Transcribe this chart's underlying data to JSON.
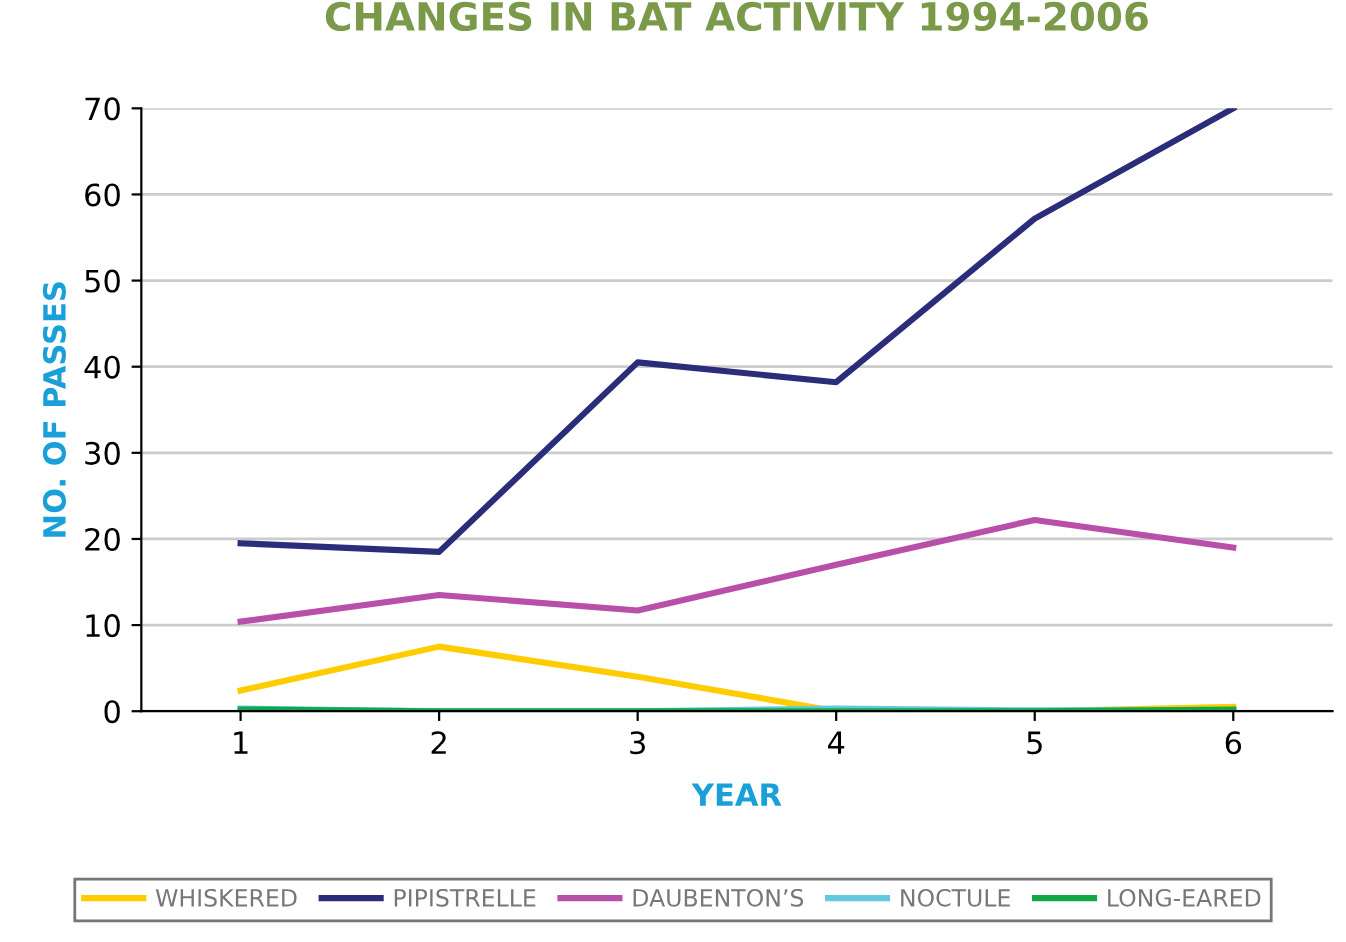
{
  "chart_data": {
    "type": "line",
    "title": "CHANGES IN BAT ACTIVITY 1994-2006",
    "xlabel": "YEAR",
    "ylabel": "NO. OF PASSES",
    "categories": [
      "1",
      "2",
      "3",
      "4",
      "5",
      "6"
    ],
    "series": [
      {
        "name": "WHISKERED",
        "color": "#ffcc00",
        "values": [
          2.4,
          7.5,
          4,
          0,
          0,
          0.5
        ]
      },
      {
        "name": "PIPISTRELLE",
        "color": "#2b2d7a",
        "values": [
          19.5,
          18.5,
          40.5,
          38.2,
          57.2,
          70
        ]
      },
      {
        "name": "DAUBENTON’S",
        "color": "#b84fa8",
        "values": [
          10.4,
          13.5,
          11.7,
          17,
          22.2,
          19
        ]
      },
      {
        "name": "NOCTULE",
        "color": "#66c8de",
        "values": [
          0.3,
          0,
          0,
          0.3,
          0.1,
          0.1
        ]
      },
      {
        "name": "LONG-EARED",
        "color": "#12a84a",
        "values": [
          0.2,
          0,
          0,
          0,
          0,
          0.2
        ]
      }
    ],
    "ylim": [
      0,
      70
    ],
    "yticks": [
      0,
      10,
      20,
      30,
      40,
      50,
      60,
      70
    ],
    "grid": "y",
    "legend": "bottom"
  }
}
